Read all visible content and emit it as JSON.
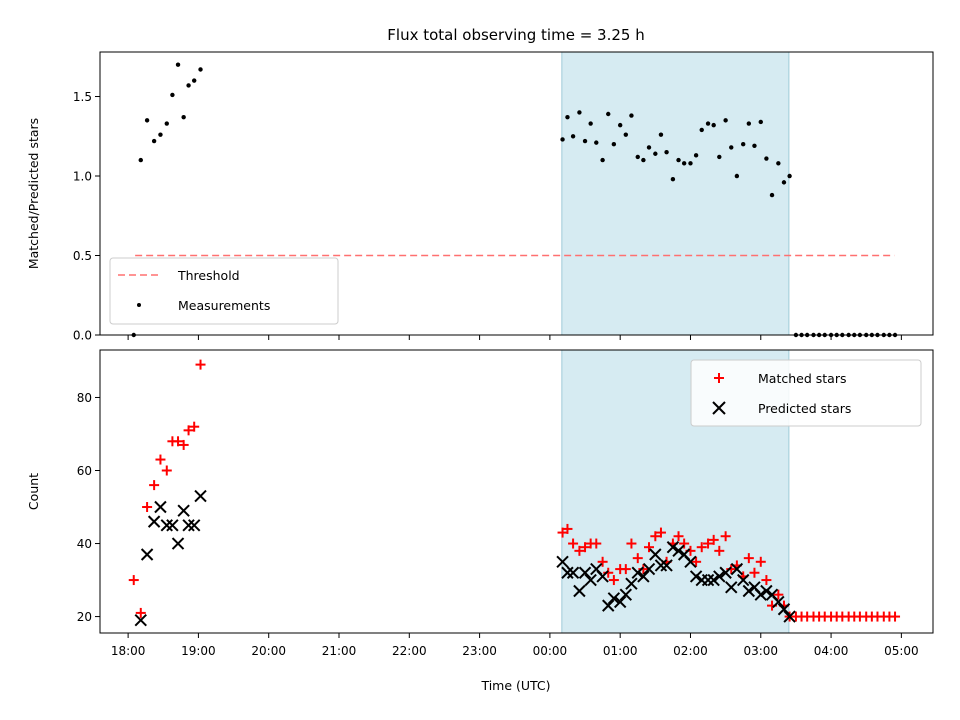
{
  "chart_data": {
    "type": "scatter",
    "title": "Flux total observing time = 3.25 h",
    "xlabel": "Time (UTC)",
    "x_unit": "hours since 18:00",
    "x_ticks": [
      {
        "v": 0,
        "label": "18:00"
      },
      {
        "v": 1,
        "label": "19:00"
      },
      {
        "v": 2,
        "label": "20:00"
      },
      {
        "v": 3,
        "label": "21:00"
      },
      {
        "v": 4,
        "label": "22:00"
      },
      {
        "v": 5,
        "label": "23:00"
      },
      {
        "v": 6,
        "label": "00:00"
      },
      {
        "v": 7,
        "label": "01:00"
      },
      {
        "v": 8,
        "label": "02:00"
      },
      {
        "v": 9,
        "label": "03:00"
      },
      {
        "v": 10,
        "label": "04:00"
      },
      {
        "v": 11,
        "label": "05:00"
      }
    ],
    "xlim": [
      -0.4,
      11.45
    ],
    "shaded_span": [
      6.17,
      9.4
    ],
    "panels": [
      {
        "id": "ratio",
        "ylabel": "Matched/Predicted stars",
        "ylim": [
          0,
          1.78
        ],
        "yticks": [
          {
            "v": 0,
            "label": "0.0"
          },
          {
            "v": 0.5,
            "label": "0.5"
          },
          {
            "v": 1.0,
            "label": "1.0"
          },
          {
            "v": 1.5,
            "label": "1.5"
          }
        ],
        "threshold": {
          "name": "Threshold",
          "y": 0.5,
          "x_range": [
            0.1,
            10.9
          ],
          "color": "#ff7070"
        },
        "series": [
          {
            "name": "Measurements",
            "marker": "dot",
            "color": "#000000",
            "points": [
              [
                0.08,
                0.0
              ],
              [
                0.18,
                1.1
              ],
              [
                0.27,
                1.35
              ],
              [
                0.37,
                1.22
              ],
              [
                0.46,
                1.26
              ],
              [
                0.55,
                1.33
              ],
              [
                0.63,
                1.51
              ],
              [
                0.71,
                1.7
              ],
              [
                0.79,
                1.37
              ],
              [
                0.86,
                1.57
              ],
              [
                0.94,
                1.6
              ],
              [
                1.03,
                1.67
              ],
              [
                6.18,
                1.23
              ],
              [
                6.25,
                1.37
              ],
              [
                6.33,
                1.25
              ],
              [
                6.42,
                1.4
              ],
              [
                6.5,
                1.22
              ],
              [
                6.58,
                1.33
              ],
              [
                6.66,
                1.21
              ],
              [
                6.75,
                1.1
              ],
              [
                6.83,
                1.39
              ],
              [
                6.91,
                1.2
              ],
              [
                7.0,
                1.32
              ],
              [
                7.08,
                1.26
              ],
              [
                7.16,
                1.38
              ],
              [
                7.25,
                1.12
              ],
              [
                7.33,
                1.1
              ],
              [
                7.41,
                1.18
              ],
              [
                7.5,
                1.14
              ],
              [
                7.58,
                1.26
              ],
              [
                7.66,
                1.15
              ],
              [
                7.75,
                0.98
              ],
              [
                7.83,
                1.1
              ],
              [
                7.91,
                1.08
              ],
              [
                8.0,
                1.08
              ],
              [
                8.08,
                1.13
              ],
              [
                8.16,
                1.29
              ],
              [
                8.25,
                1.33
              ],
              [
                8.33,
                1.32
              ],
              [
                8.41,
                1.12
              ],
              [
                8.5,
                1.35
              ],
              [
                8.58,
                1.18
              ],
              [
                8.66,
                1.0
              ],
              [
                8.75,
                1.2
              ],
              [
                8.83,
                1.33
              ],
              [
                8.91,
                1.19
              ],
              [
                9.0,
                1.34
              ],
              [
                9.08,
                1.11
              ],
              [
                9.16,
                0.88
              ],
              [
                9.25,
                1.08
              ],
              [
                9.33,
                0.96
              ],
              [
                9.41,
                1.0
              ],
              [
                9.5,
                0.0
              ],
              [
                9.58,
                0.0
              ],
              [
                9.66,
                0.0
              ],
              [
                9.75,
                0.0
              ],
              [
                9.83,
                0.0
              ],
              [
                9.91,
                0.0
              ],
              [
                10.0,
                0.0
              ],
              [
                10.08,
                0.0
              ],
              [
                10.16,
                0.0
              ],
              [
                10.25,
                0.0
              ],
              [
                10.33,
                0.0
              ],
              [
                10.41,
                0.0
              ],
              [
                10.5,
                0.0
              ],
              [
                10.58,
                0.0
              ],
              [
                10.66,
                0.0
              ],
              [
                10.75,
                0.0
              ],
              [
                10.83,
                0.0
              ],
              [
                10.91,
                0.0
              ]
            ]
          }
        ],
        "legend": {
          "placement": "lower-left",
          "entries": [
            "Threshold",
            "Measurements"
          ]
        }
      },
      {
        "id": "count",
        "ylabel": "Count",
        "ylim": [
          15.5,
          93
        ],
        "yticks": [
          {
            "v": 20,
            "label": "20"
          },
          {
            "v": 40,
            "label": "40"
          },
          {
            "v": 60,
            "label": "60"
          },
          {
            "v": 80,
            "label": "80"
          }
        ],
        "series": [
          {
            "name": "Matched stars",
            "marker": "plus",
            "color": "#ff0000",
            "points": [
              [
                0.08,
                30
              ],
              [
                0.18,
                21
              ],
              [
                0.27,
                50
              ],
              [
                0.37,
                56
              ],
              [
                0.46,
                63
              ],
              [
                0.55,
                60
              ],
              [
                0.63,
                68
              ],
              [
                0.71,
                68
              ],
              [
                0.79,
                67
              ],
              [
                0.86,
                71
              ],
              [
                0.94,
                72
              ],
              [
                1.03,
                89
              ],
              [
                6.18,
                43
              ],
              [
                6.25,
                44
              ],
              [
                6.33,
                40
              ],
              [
                6.42,
                38
              ],
              [
                6.5,
                39
              ],
              [
                6.58,
                40
              ],
              [
                6.66,
                40
              ],
              [
                6.75,
                35
              ],
              [
                6.83,
                32
              ],
              [
                6.91,
                30
              ],
              [
                7.0,
                33
              ],
              [
                7.08,
                33
              ],
              [
                7.16,
                40
              ],
              [
                7.25,
                36
              ],
              [
                7.33,
                33
              ],
              [
                7.41,
                39
              ],
              [
                7.5,
                42
              ],
              [
                7.58,
                43
              ],
              [
                7.66,
                35
              ],
              [
                7.75,
                40
              ],
              [
                7.83,
                42
              ],
              [
                7.91,
                40
              ],
              [
                8.0,
                38
              ],
              [
                8.08,
                35
              ],
              [
                8.16,
                39
              ],
              [
                8.25,
                40
              ],
              [
                8.33,
                41
              ],
              [
                8.41,
                38
              ],
              [
                8.5,
                42
              ],
              [
                8.58,
                33
              ],
              [
                8.66,
                34
              ],
              [
                8.75,
                31
              ],
              [
                8.83,
                36
              ],
              [
                8.91,
                32
              ],
              [
                9.0,
                35
              ],
              [
                9.08,
                30
              ],
              [
                9.16,
                23
              ],
              [
                9.25,
                26
              ],
              [
                9.33,
                23
              ],
              [
                9.41,
                20
              ],
              [
                9.5,
                20
              ],
              [
                9.58,
                20
              ],
              [
                9.66,
                20
              ],
              [
                9.75,
                20
              ],
              [
                9.83,
                20
              ],
              [
                9.91,
                20
              ],
              [
                10.0,
                20
              ],
              [
                10.08,
                20
              ],
              [
                10.16,
                20
              ],
              [
                10.25,
                20
              ],
              [
                10.33,
                20
              ],
              [
                10.41,
                20
              ],
              [
                10.5,
                20
              ],
              [
                10.58,
                20
              ],
              [
                10.66,
                20
              ],
              [
                10.75,
                20
              ],
              [
                10.83,
                20
              ],
              [
                10.91,
                20
              ]
            ]
          },
          {
            "name": "Predicted stars",
            "marker": "cross",
            "color": "#000000",
            "points": [
              [
                0.18,
                19
              ],
              [
                0.27,
                37
              ],
              [
                0.37,
                46
              ],
              [
                0.46,
                50
              ],
              [
                0.55,
                45
              ],
              [
                0.63,
                45
              ],
              [
                0.71,
                40
              ],
              [
                0.79,
                49
              ],
              [
                0.86,
                45
              ],
              [
                0.94,
                45
              ],
              [
                1.03,
                53
              ],
              [
                6.18,
                35
              ],
              [
                6.25,
                32
              ],
              [
                6.33,
                32
              ],
              [
                6.42,
                27
              ],
              [
                6.5,
                32
              ],
              [
                6.58,
                30
              ],
              [
                6.66,
                33
              ],
              [
                6.75,
                31
              ],
              [
                6.83,
                23
              ],
              [
                6.91,
                25
              ],
              [
                7.0,
                24
              ],
              [
                7.08,
                26
              ],
              [
                7.16,
                29
              ],
              [
                7.25,
                32
              ],
              [
                7.33,
                31
              ],
              [
                7.41,
                33
              ],
              [
                7.5,
                37
              ],
              [
                7.58,
                34
              ],
              [
                7.66,
                34
              ],
              [
                7.75,
                39
              ],
              [
                7.83,
                38
              ],
              [
                7.91,
                37
              ],
              [
                8.0,
                35
              ],
              [
                8.08,
                31
              ],
              [
                8.16,
                30
              ],
              [
                8.25,
                30
              ],
              [
                8.33,
                30
              ],
              [
                8.41,
                31
              ],
              [
                8.5,
                32
              ],
              [
                8.58,
                28
              ],
              [
                8.66,
                33
              ],
              [
                8.75,
                30
              ],
              [
                8.83,
                27
              ],
              [
                8.91,
                28
              ],
              [
                9.0,
                26
              ],
              [
                9.08,
                27
              ],
              [
                9.16,
                26
              ],
              [
                9.25,
                24
              ],
              [
                9.33,
                22
              ],
              [
                9.41,
                20
              ]
            ]
          }
        ],
        "legend": {
          "placement": "upper-right",
          "entries": [
            "Matched stars",
            "Predicted stars"
          ]
        }
      }
    ],
    "grid": false
  }
}
